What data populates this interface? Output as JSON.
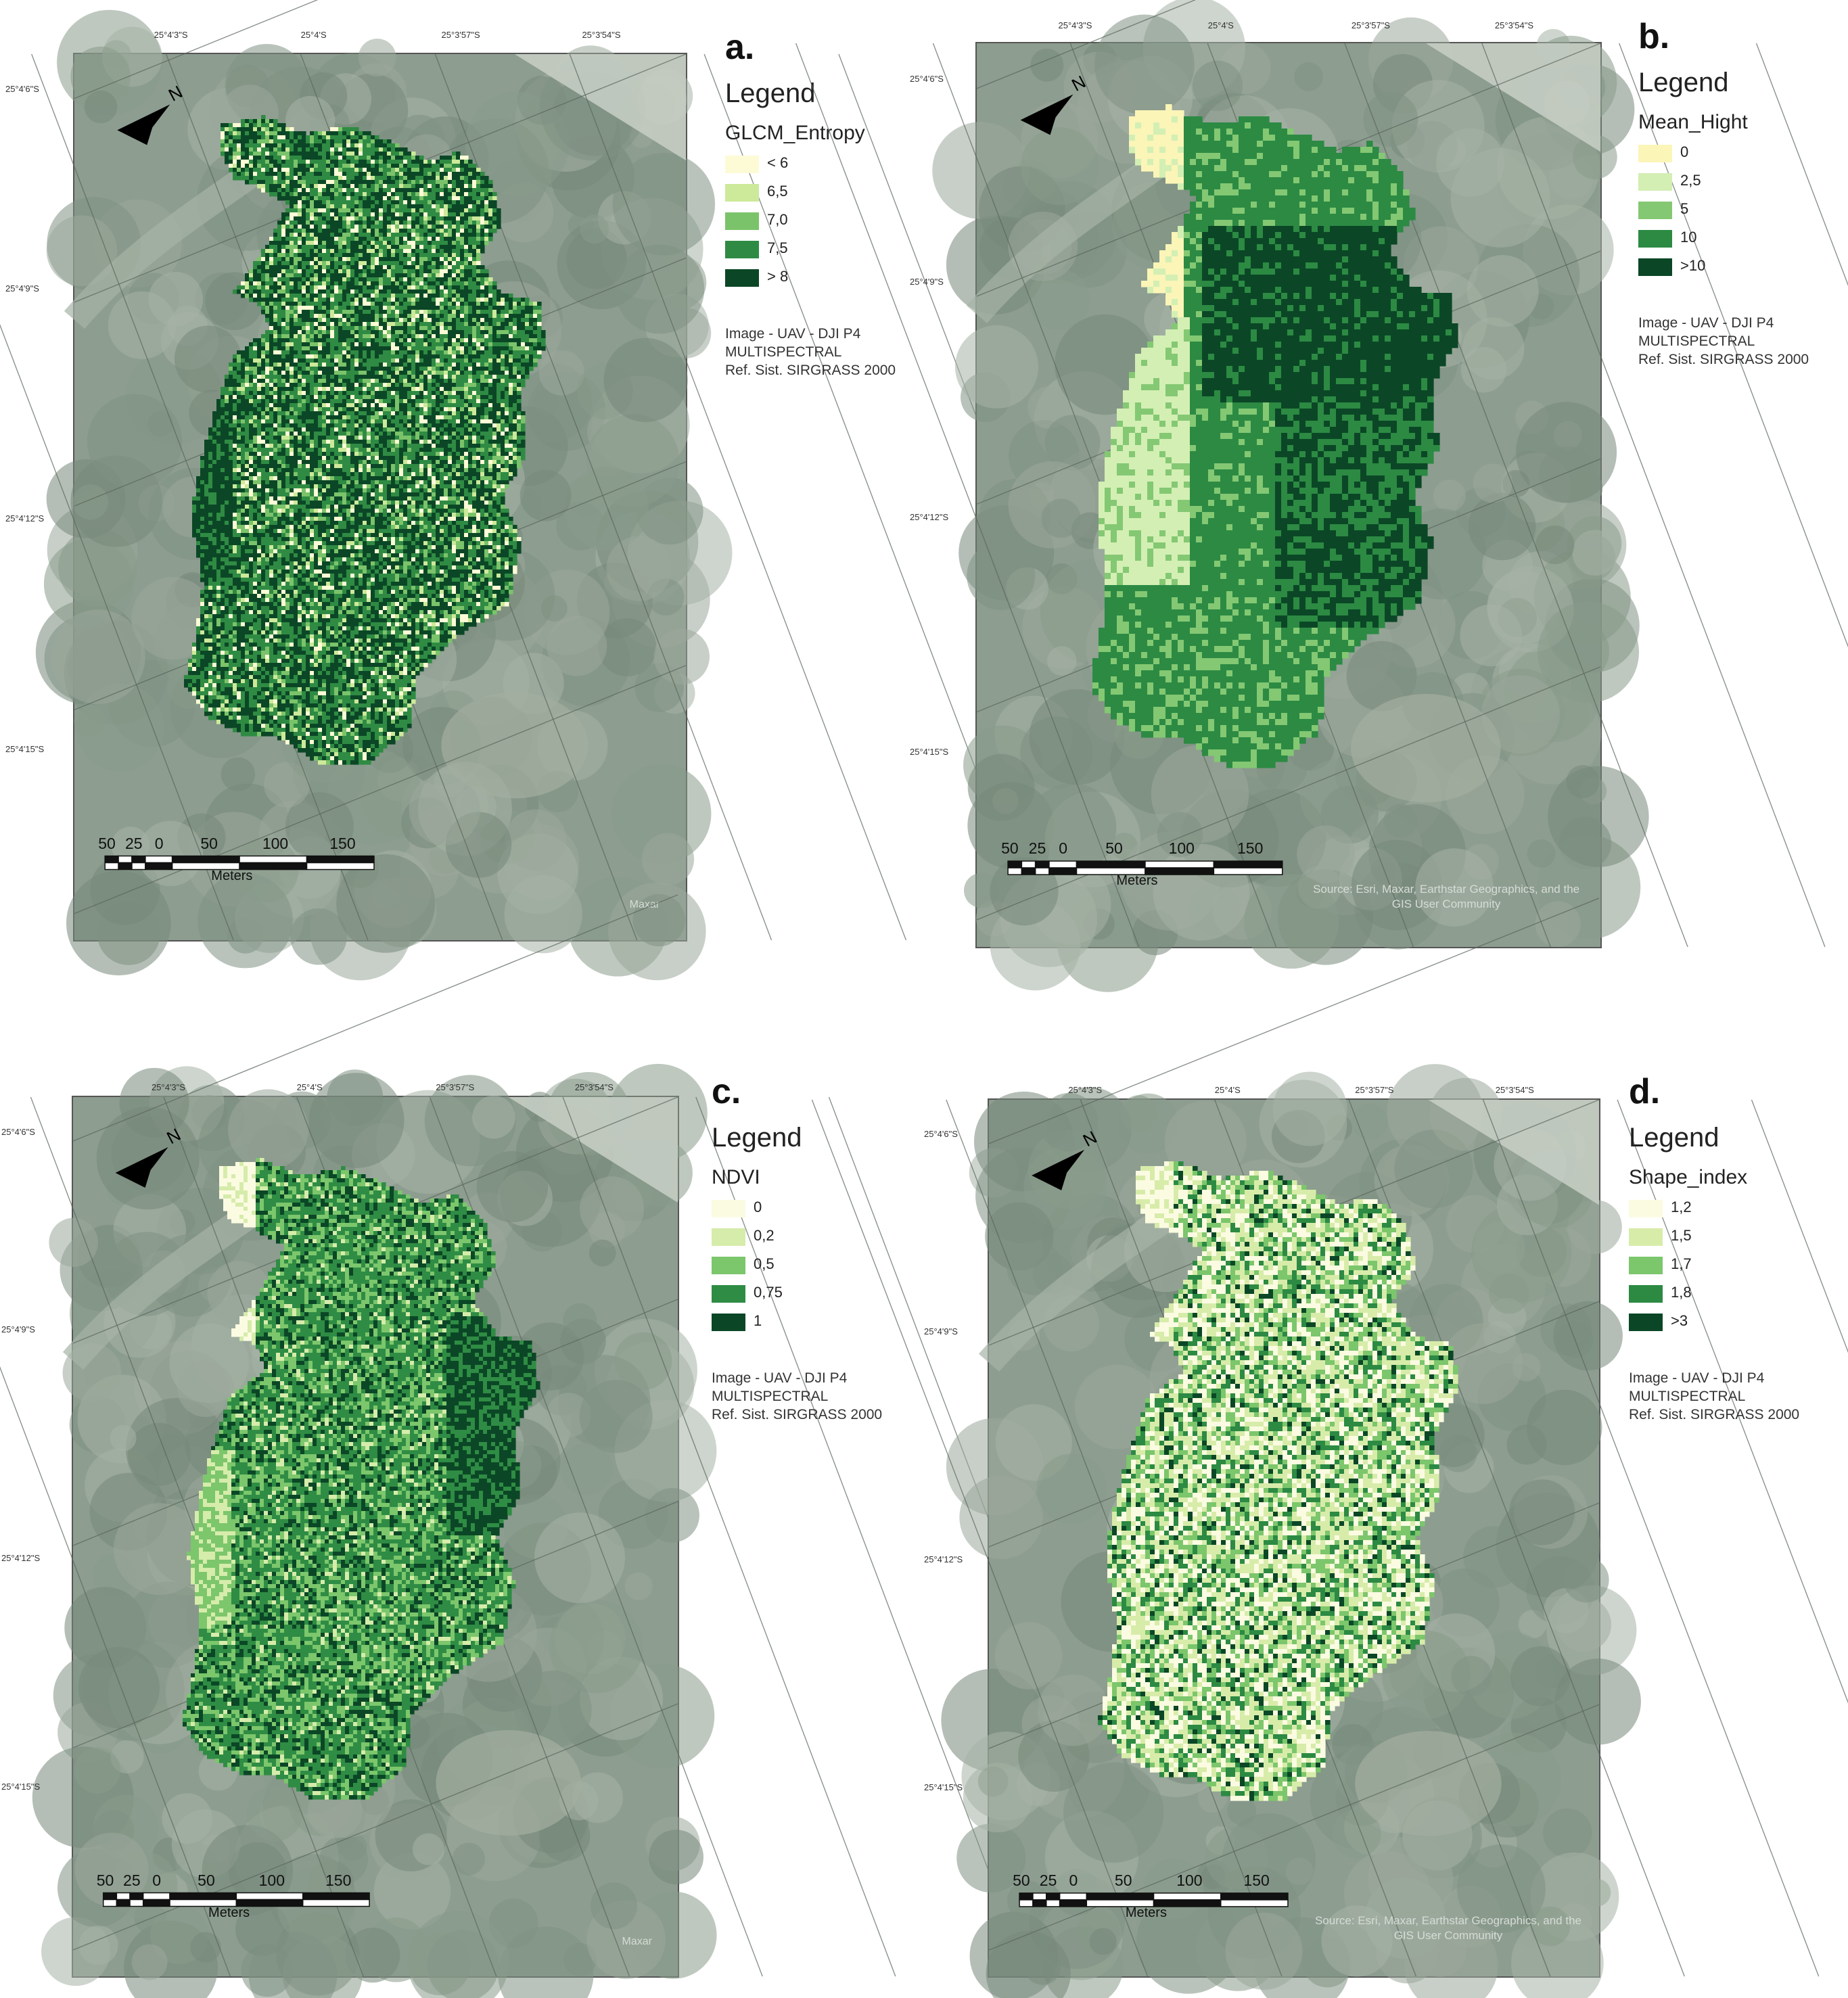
{
  "panels": [
    {
      "letter": "a.",
      "legend_title": "Legend",
      "field": "GLCM_Entropy",
      "classes": [
        {
          "label": "< 6",
          "color": "#fdfbd6"
        },
        {
          "label": "6,5",
          "color": "#cde99a"
        },
        {
          "label": "7,0",
          "color": "#7bc36a"
        },
        {
          "label": "7,5",
          "color": "#2f8b43"
        },
        {
          "label": "> 8",
          "color": "#0b4726"
        }
      ],
      "info": [
        "Image - UAV - DJI P4",
        "MULTISPECTRAL",
        "Ref. Sist. SIRGRASS 2000"
      ],
      "lon_ticks": [
        "25°4'3\"S",
        "25°4'S",
        "25°3'57\"S",
        "25°3'54\"S"
      ],
      "lat_ticks": [
        "25°4'6\"S",
        "25°4'9\"S",
        "25°4'12\"S",
        "25°4'15\"S"
      ],
      "scale_ticks": [
        "50",
        "25",
        "0",
        "50",
        "100",
        "150"
      ],
      "scale_unit": "Meters",
      "attribution": "",
      "watermark": "Maxar",
      "north": "N"
    },
    {
      "letter": "b.",
      "legend_title": "Legend",
      "field": "Mean_Hight",
      "classes": [
        {
          "label": "0",
          "color": "#fbf5b8"
        },
        {
          "label": "2,5",
          "color": "#d3efb3"
        },
        {
          "label": "5",
          "color": "#84c873"
        },
        {
          "label": "10",
          "color": "#2c8a43"
        },
        {
          "label": ">10",
          "color": "#0b4726"
        }
      ],
      "info": [
        "Image - UAV - DJI P4",
        "MULTISPECTRAL",
        "Ref. Sist. SIRGRASS 2000"
      ],
      "lon_ticks": [
        "25°4'3\"S",
        "25°4'S",
        "25°3'57\"S",
        "25°3'54\"S"
      ],
      "lat_ticks": [
        "25°4'6\"S",
        "25°4'9\"S",
        "25°4'12\"S",
        "25°4'15\"S"
      ],
      "scale_ticks": [
        "50",
        "25",
        "0",
        "50",
        "100",
        "150"
      ],
      "scale_unit": "Meters",
      "attribution": "Source: Esri, Maxar, Earthstar Geographics, and the GIS User Community",
      "watermark": "",
      "north": "N"
    },
    {
      "letter": "c.",
      "legend_title": "Legend",
      "field": "NDVI",
      "classes": [
        {
          "label": "0",
          "color": "#fbfbe2"
        },
        {
          "label": "0,2",
          "color": "#d6ecab"
        },
        {
          "label": "0,5",
          "color": "#7cc66c"
        },
        {
          "label": "0,75",
          "color": "#2f8c44"
        },
        {
          "label": "1",
          "color": "#0b4726"
        }
      ],
      "info": [
        "Image - UAV - DJI P4",
        "MULTISPECTRAL",
        "Ref. Sist. SIRGRASS 2000"
      ],
      "lon_ticks": [
        "25°4'3\"S",
        "25°4'S",
        "25°3'57\"S",
        "25°3'54\"S"
      ],
      "lat_ticks": [
        "25°4'6\"S",
        "25°4'9\"S",
        "25°4'12\"S",
        "25°4'15\"S"
      ],
      "scale_ticks": [
        "50",
        "25",
        "0",
        "50",
        "100",
        "150"
      ],
      "scale_unit": "Meters",
      "attribution": "",
      "watermark": "Maxar",
      "north": "N"
    },
    {
      "letter": "d.",
      "legend_title": "Legend",
      "field": "Shape_index",
      "classes": [
        {
          "label": "1,2",
          "color": "#fbfbe2"
        },
        {
          "label": "1,5",
          "color": "#d8ecaa"
        },
        {
          "label": "1,7",
          "color": "#7cc66c"
        },
        {
          "label": "1,8",
          "color": "#2c8a43"
        },
        {
          "label": ">3",
          "color": "#0b4726"
        }
      ],
      "info": [
        "Image - UAV - DJI P4",
        "MULTISPECTRAL",
        "Ref. Sist. SIRGRASS 2000"
      ],
      "lon_ticks": [
        "25°4'3\"S",
        "25°4'S",
        "25°3'57\"S",
        "25°3'54\"S"
      ],
      "lat_ticks": [
        "25°4'6\"S",
        "25°4'9\"S",
        "25°4'12\"S",
        "25°4'15\"S"
      ],
      "scale_ticks": [
        "50",
        "25",
        "0",
        "50",
        "100",
        "150"
      ],
      "scale_unit": "Meters",
      "attribution": "Source: Esri, Maxar, Earthstar Geographics, and the GIS User Community",
      "watermark": "",
      "north": "N"
    }
  ]
}
